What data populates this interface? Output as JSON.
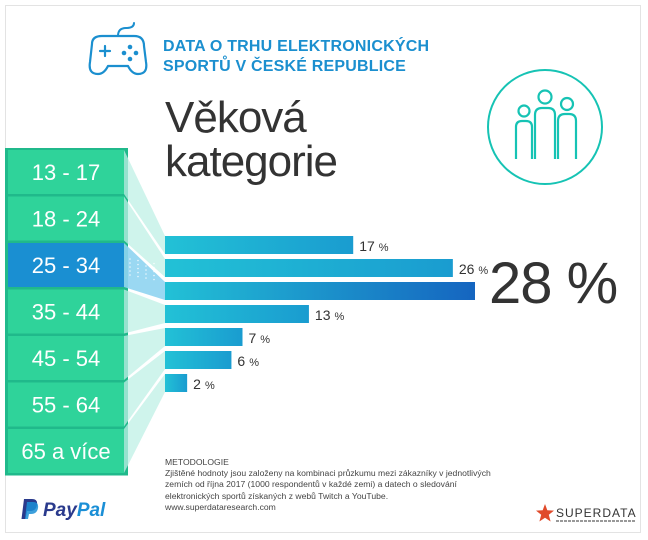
{
  "header": {
    "line1": "DATA O TRHU ELEKTRONICKÝCH",
    "line2": "SPORTŮ V ČESKÉ REPUBLICE",
    "icon": "gamepad-icon"
  },
  "title": {
    "line1": "Věková",
    "line2": "kategorie"
  },
  "badge_icon": "people-icon",
  "colors": {
    "accent": "#1b8fcf",
    "tab_green": "#2fd39a",
    "tab_selected": "#1a8fd2",
    "bar_light": "#22c1d6",
    "bar_dark": "#1a9cd0",
    "badge": "#16c3b4"
  },
  "chart_data": {
    "type": "bar",
    "orientation": "horizontal",
    "categories": [
      "13 - 17",
      "18 - 24",
      "25 - 34",
      "35 - 44",
      "45 - 54",
      "55 - 64",
      "65 a více"
    ],
    "selected_category": "25 - 34",
    "selected_value_label": "28 %",
    "bars": [
      {
        "value": 17,
        "label": "17 %"
      },
      {
        "value": 26,
        "label": "26 %"
      },
      {
        "value": 28,
        "label": ""
      },
      {
        "value": 13,
        "label": "13 %"
      },
      {
        "value": 7,
        "label": "7 %"
      },
      {
        "value": 6,
        "label": "6 %"
      },
      {
        "value": 2,
        "label": "2 %"
      }
    ],
    "xlim": [
      0,
      28
    ]
  },
  "methodology": {
    "title": "METODOLOGIE",
    "text": "Zjištěné hodnoty jsou založeny na kombinaci průzkumu mezi zákazníky v jednotlivých zemích od října 2017 (1000 respondentů v každé zemi) a datech o sledování elektronických sportů získaných z webů Twitch a YouTube.",
    "link": "www.superdataresearch.com"
  },
  "footer": {
    "paypal_pay": "Pay",
    "paypal_pal": "Pal",
    "paypal_icon": "paypal-icon",
    "superdata": "SUPERDATA",
    "superdata_icon": "star-icon"
  }
}
